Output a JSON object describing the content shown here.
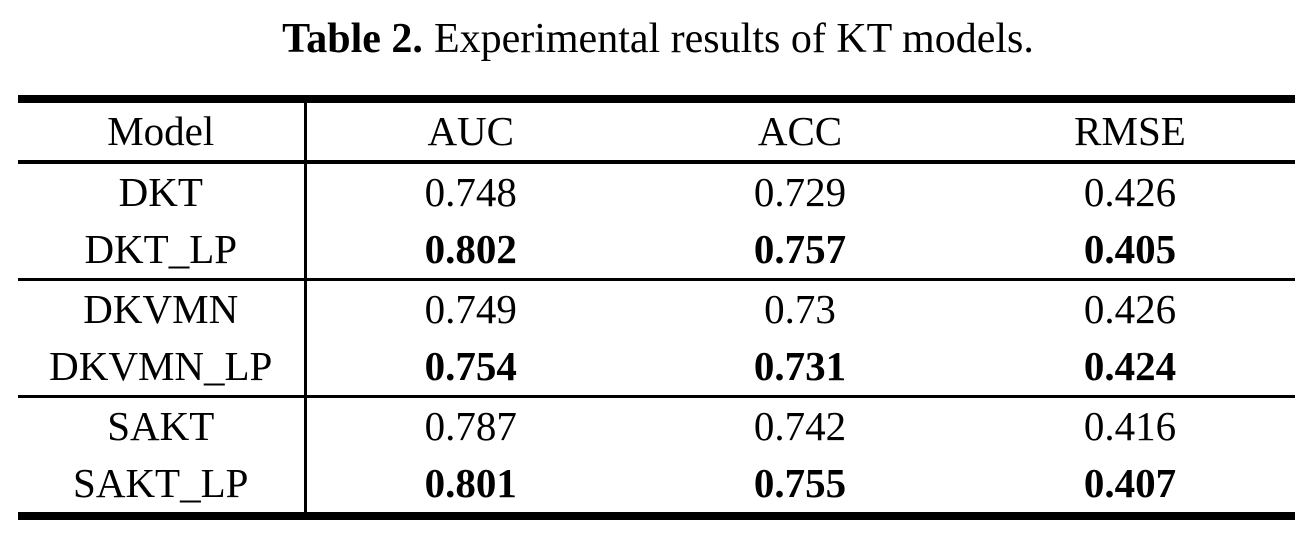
{
  "caption": {
    "label": "Table 2.",
    "text": "Experimental results of KT models."
  },
  "table": {
    "columns": [
      "Model",
      "AUC",
      "ACC",
      "RMSE"
    ],
    "rows": [
      {
        "model": "DKT",
        "auc": "0.748",
        "acc": "0.729",
        "rmse": "0.426",
        "emphasis": false
      },
      {
        "model": "DKT_LP",
        "auc": "0.802",
        "acc": "0.757",
        "rmse": "0.405",
        "emphasis": true
      },
      {
        "model": "DKVMN",
        "auc": "0.749",
        "acc": "0.73",
        "rmse": "0.426",
        "emphasis": false
      },
      {
        "model": "DKVMN_LP",
        "auc": "0.754",
        "acc": "0.731",
        "rmse": "0.424",
        "emphasis": true
      },
      {
        "model": "SAKT",
        "auc": "0.787",
        "acc": "0.742",
        "rmse": "0.416",
        "emphasis": false
      },
      {
        "model": "SAKT_LP",
        "auc": "0.801",
        "acc": "0.755",
        "rmse": "0.407",
        "emphasis": true
      }
    ]
  },
  "colors": {
    "text": "#000000",
    "background": "#ffffff",
    "rule": "#000000"
  },
  "chart_data": {
    "type": "table",
    "title": "Table 2. Experimental results of KT models.",
    "columns": [
      "Model",
      "AUC",
      "ACC",
      "RMSE"
    ],
    "rows": [
      [
        "DKT",
        0.748,
        0.729,
        0.426
      ],
      [
        "DKT_LP",
        0.802,
        0.757,
        0.405
      ],
      [
        "DKVMN",
        0.749,
        0.73,
        0.426
      ],
      [
        "DKVMN_LP",
        0.754,
        0.731,
        0.424
      ],
      [
        "SAKT",
        0.787,
        0.742,
        0.416
      ],
      [
        "SAKT_LP",
        0.801,
        0.755,
        0.407
      ]
    ],
    "bold_value_rows": [
      "DKT_LP",
      "DKVMN_LP",
      "SAKT_LP"
    ]
  }
}
